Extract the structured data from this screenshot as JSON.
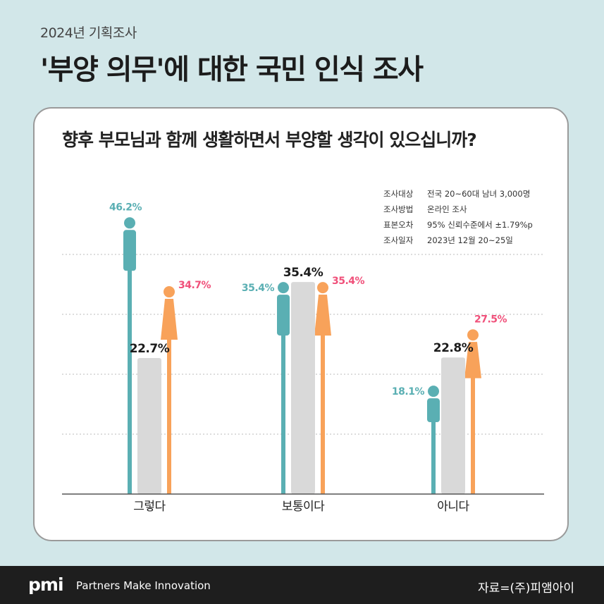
{
  "header": {
    "subtitle": "2024년 기획조사",
    "title": "'부양 의무'에 대한 국민 인식 조사"
  },
  "question": "향후 부모님과 함께 생활하면서 부양할 생각이 있으십니까?",
  "survey_info": [
    {
      "key": "조사대상",
      "value": "전국 20~60대 남녀 3,000명"
    },
    {
      "key": "조사방법",
      "value": "온라인 조사"
    },
    {
      "key": "표본오차",
      "value": "95% 신뢰수준에서 ±1.79%p"
    },
    {
      "key": "조사일자",
      "value": "2023년 12월 20~25일"
    }
  ],
  "colors": {
    "male": "#5aafb3",
    "female": "#f8a25a",
    "total": "#d9d9d9",
    "female_label": "#f0507a",
    "male_label": "#5aafb3"
  },
  "chart_data": {
    "type": "bar",
    "categories": [
      "그렇다",
      "보통이다",
      "아니다"
    ],
    "series": [
      {
        "values": [
          46.2,
          35.4,
          18.1
        ]
      },
      {
        "values": [
          22.7,
          35.4,
          22.8
        ]
      },
      {
        "values": [
          34.7,
          35.4,
          27.5
        ]
      }
    ],
    "value_labels": [
      [
        "46.2%",
        "35.4%",
        "18.1%"
      ],
      [
        "22.7%",
        "35.4%",
        "22.8%"
      ],
      [
        "34.7%",
        "35.4%",
        "27.5%"
      ]
    ],
    "ylim": [
      0,
      50
    ],
    "grid": true
  },
  "footer": {
    "logo": "pmi",
    "tagline": "Partners Make Innovation",
    "source": "자료=(주)피앰아이"
  }
}
